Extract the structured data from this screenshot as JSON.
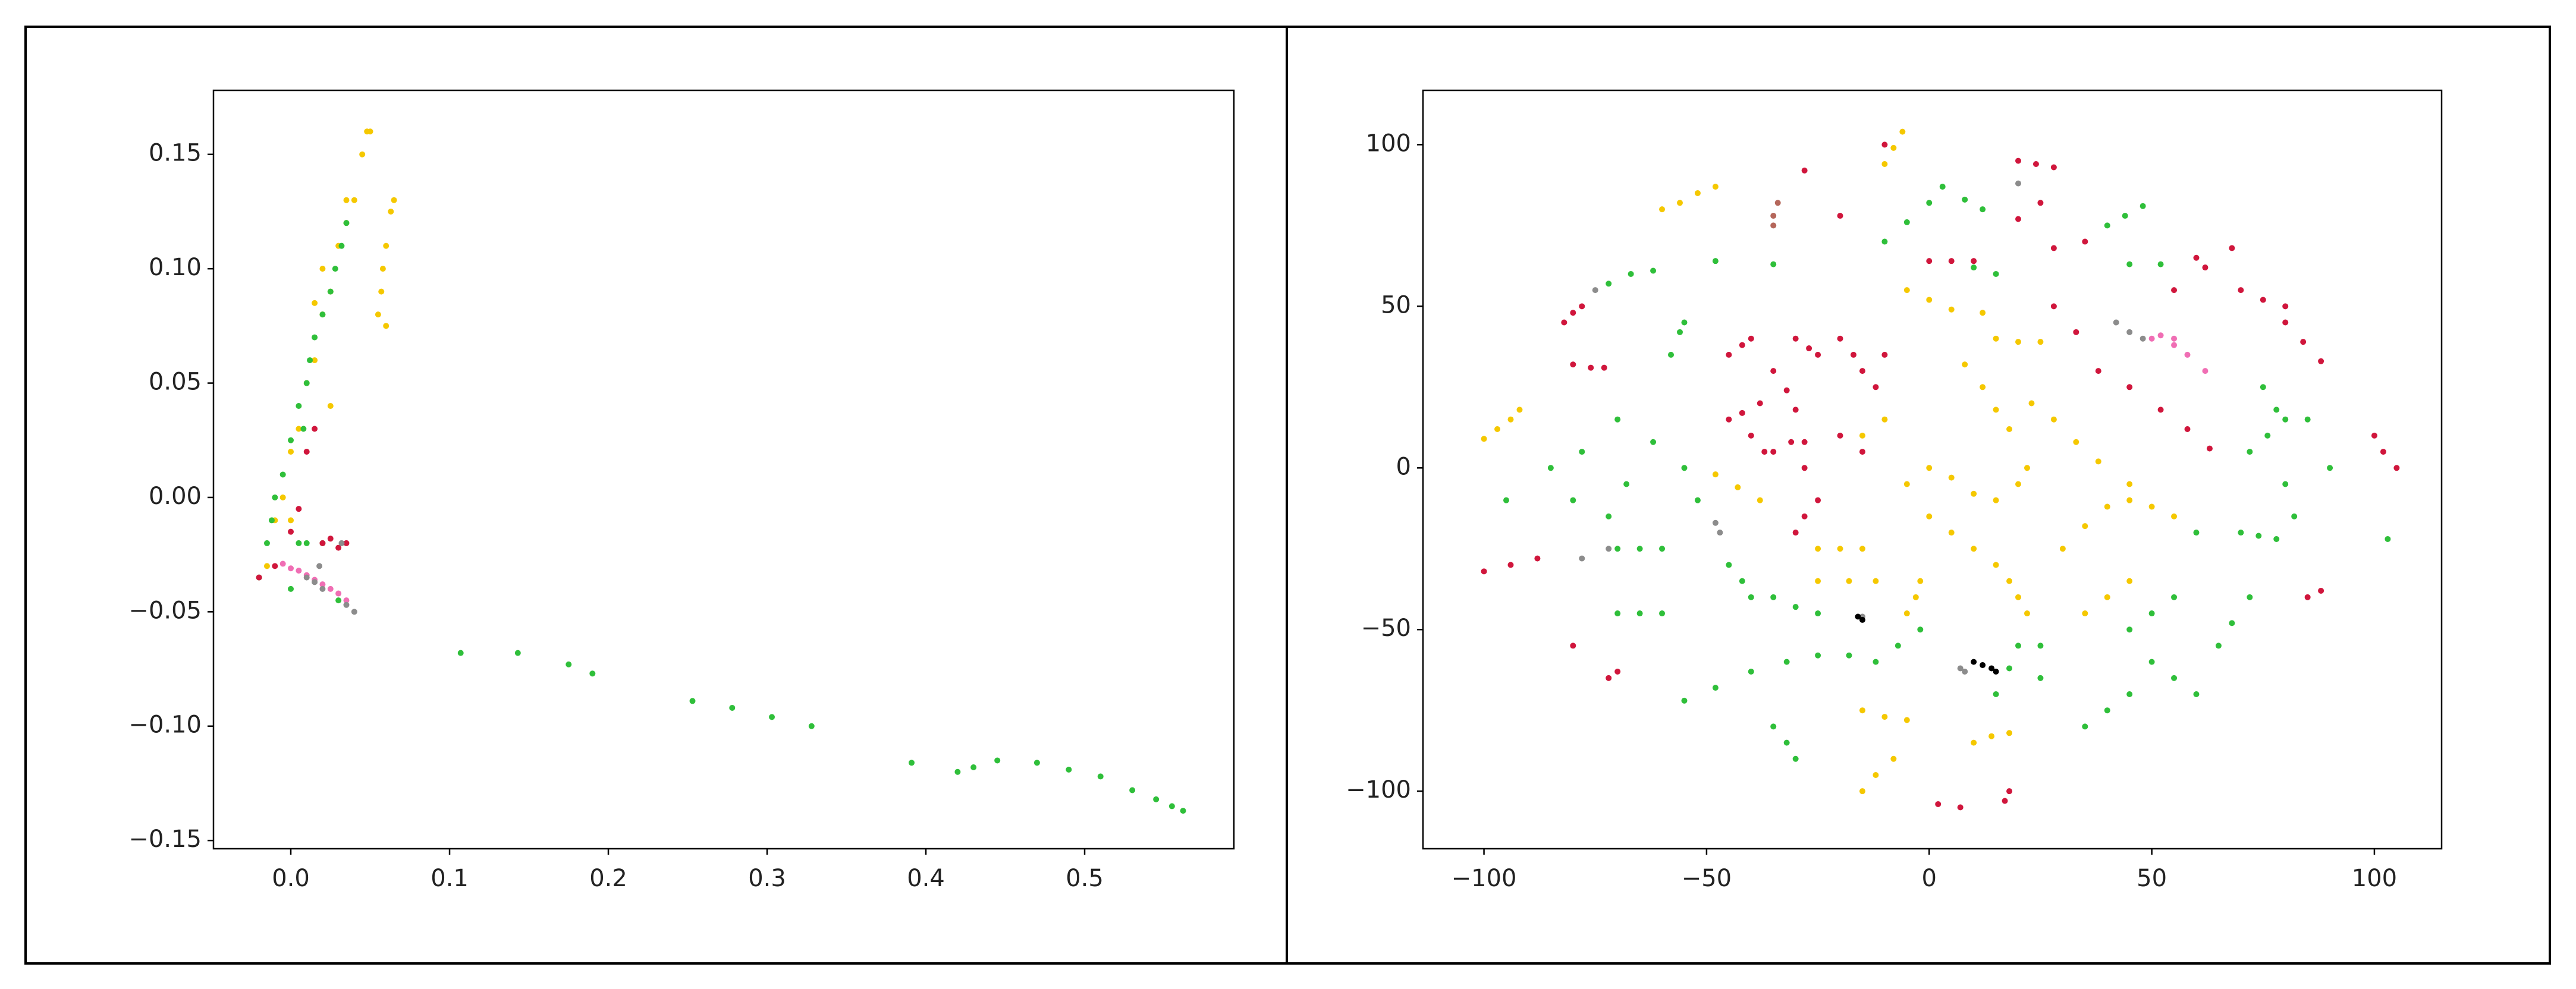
{
  "chart_data": [
    {
      "type": "scatter",
      "xlim": [
        -0.0487,
        0.594
      ],
      "ylim": [
        -0.1536,
        0.178
      ],
      "xticks": [
        {
          "value": 0,
          "label": "0.0"
        },
        0.1,
        0.2,
        0.3,
        0.4,
        0.5
      ],
      "yticks": [
        {
          "value": -0.15,
          "label": "−0.15"
        },
        {
          "value": -0.1,
          "label": "−0.10"
        },
        {
          "value": -0.05,
          "label": "−0.05"
        },
        {
          "value": 0,
          "label": "0.00"
        },
        0.05,
        {
          "value": 0.1,
          "label": "0.10"
        },
        0.15
      ],
      "series": [
        {
          "color": "#f5c800",
          "x": [
            -0.015,
            -0.01,
            -0.005,
            0,
            0.005,
            0.01,
            0.015,
            0.02,
            0.025,
            0.03,
            0.035,
            0.04,
            0.045,
            0.048,
            0.05,
            0.02,
            0.015,
            0.035,
            0.055,
            0.058,
            0.06,
            0.063,
            0.065,
            0.06,
            0.057,
            0.025,
            0
          ],
          "values": [
            -0.03,
            -0.01,
            0,
            0.02,
            0.03,
            0.05,
            0.06,
            0.08,
            0.09,
            0.11,
            0.12,
            0.13,
            0.15,
            0.16,
            0.16,
            0.1,
            0.085,
            0.13,
            0.08,
            0.1,
            0.11,
            0.125,
            0.13,
            0.075,
            0.09,
            0.04,
            -0.01
          ]
        },
        {
          "color": "#2fbf3a",
          "x": [
            -0.02,
            -0.015,
            -0.012,
            -0.01,
            -0.005,
            0,
            0.005,
            0.01,
            0.012,
            0.015,
            0.02,
            0.025,
            0.028,
            0.032,
            0.035,
            0.005,
            0.01,
            0.02,
            0,
            0.008,
            0.03,
            0.107,
            0.143,
            0.175,
            0.19,
            0.253,
            0.278,
            0.303,
            0.328,
            0.391,
            0.42,
            0.43,
            0.445,
            0.47,
            0.49,
            0.51,
            0.53,
            0.545,
            0.555,
            0.562
          ],
          "values": [
            -0.035,
            -0.02,
            -0.01,
            0,
            0.01,
            0.025,
            0.04,
            0.05,
            0.06,
            0.07,
            0.08,
            0.09,
            0.1,
            0.11,
            0.12,
            -0.02,
            -0.02,
            -0.02,
            -0.04,
            0.03,
            -0.045,
            -0.068,
            -0.068,
            -0.073,
            -0.077,
            -0.089,
            -0.092,
            -0.096,
            -0.1,
            -0.116,
            -0.12,
            -0.118,
            -0.115,
            -0.116,
            -0.119,
            -0.122,
            -0.128,
            -0.132,
            -0.135,
            -0.137
          ]
        },
        {
          "color": "#d0163c",
          "x": [
            -0.02,
            -0.01,
            0.02,
            0.025,
            0.03,
            0.035,
            0,
            0.005,
            0.015,
            0.01
          ],
          "values": [
            -0.035,
            -0.03,
            -0.02,
            -0.018,
            -0.022,
            -0.02,
            -0.015,
            -0.005,
            0.03,
            0.02
          ]
        },
        {
          "color": "#f06eb4",
          "x": [
            -0.005,
            0,
            0.005,
            0.01,
            0.015,
            0.02,
            0.025,
            0.03,
            0.035
          ],
          "values": [
            -0.029,
            -0.031,
            -0.032,
            -0.034,
            -0.036,
            -0.038,
            -0.04,
            -0.042,
            -0.045
          ]
        },
        {
          "color": "#8c8c8c",
          "x": [
            0.01,
            0.015,
            0.02,
            0.035,
            0.04,
            0.032,
            0.018
          ],
          "values": [
            -0.035,
            -0.037,
            -0.04,
            -0.047,
            -0.05,
            -0.02,
            -0.03
          ]
        }
      ]
    },
    {
      "type": "scatter",
      "xlim": [
        -113.7,
        115.1
      ],
      "ylim": [
        -117.8,
        116.8
      ],
      "xticks": [
        {
          "value": -100,
          "label": "−100"
        },
        {
          "value": -50,
          "label": "−50"
        },
        0,
        50,
        100
      ],
      "yticks": [
        {
          "value": -100,
          "label": "−100"
        },
        {
          "value": -50,
          "label": "−50"
        },
        0,
        50,
        100
      ],
      "series": [
        {
          "color": "#f5c800",
          "x": [
            -100,
            -97,
            -94,
            -92,
            -60,
            -56,
            -52,
            -48,
            -10,
            -8,
            -6,
            -5,
            0,
            5,
            12,
            8,
            12,
            15,
            18,
            15,
            20,
            25,
            23,
            28,
            33,
            38,
            -48,
            -43,
            -38,
            -25,
            -20,
            -15,
            -25,
            -18,
            -12,
            -5,
            0,
            5,
            10,
            15,
            20,
            22,
            0,
            5,
            10,
            15,
            18,
            20,
            22,
            -15,
            -10,
            30,
            35,
            40,
            45,
            45,
            50,
            55,
            35,
            40,
            45,
            -15,
            -10,
            -5,
            -15,
            -12,
            -8,
            10,
            14,
            18,
            -5,
            -3,
            -2
          ],
          "values": [
            9,
            12,
            15,
            18,
            80,
            82,
            85,
            87,
            94,
            99,
            104,
            55,
            52,
            49,
            48,
            32,
            25,
            18,
            12,
            40,
            39,
            39,
            20,
            15,
            8,
            2,
            -2,
            -6,
            -10,
            -25,
            -25,
            -25,
            -35,
            -35,
            -35,
            -5,
            0,
            -3,
            -8,
            -10,
            -5,
            0,
            -15,
            -20,
            -25,
            -30,
            -35,
            -40,
            -45,
            10,
            15,
            -25,
            -18,
            -12,
            -5,
            -10,
            -12,
            -15,
            -45,
            -40,
            -35,
            -75,
            -77,
            -78,
            -100,
            -95,
            -90,
            -85,
            -83,
            -82,
            -45,
            -40,
            -35
          ]
        },
        {
          "color": "#2fbf3a",
          "x": [
            -58,
            -56,
            -55,
            -72,
            -67,
            -62,
            -48,
            -35,
            -10,
            -5,
            0,
            3,
            8,
            12,
            10,
            15,
            45,
            52,
            40,
            44,
            48,
            -85,
            -78,
            -80,
            -72,
            -68,
            -70,
            -62,
            -55,
            -52,
            -95,
            -70,
            -65,
            -60,
            -70,
            -65,
            -60,
            -45,
            -42,
            -40,
            -35,
            -30,
            -25,
            -55,
            -48,
            -40,
            -32,
            -25,
            -18,
            -12,
            -7,
            -2,
            -35,
            -32,
            -30,
            15,
            18,
            20,
            25,
            25,
            35,
            40,
            45,
            45,
            50,
            55,
            65,
            68,
            72,
            80,
            82,
            70,
            74,
            78,
            60,
            72,
            76,
            80,
            75,
            78,
            85,
            90,
            50,
            55,
            60,
            103
          ],
          "values": [
            35,
            42,
            45,
            57,
            60,
            61,
            64,
            63,
            70,
            76,
            82,
            87,
            83,
            80,
            62,
            60,
            63,
            63,
            75,
            78,
            81,
            0,
            5,
            -10,
            -15,
            -5,
            15,
            8,
            0,
            -10,
            -10,
            -45,
            -45,
            -45,
            -25,
            -25,
            -25,
            -30,
            -35,
            -40,
            -40,
            -43,
            -45,
            -72,
            -68,
            -63,
            -60,
            -58,
            -58,
            -60,
            -55,
            -50,
            -80,
            -85,
            -90,
            -70,
            -62,
            -55,
            -65,
            -55,
            -80,
            -75,
            -70,
            -50,
            -45,
            -40,
            -55,
            -48,
            -40,
            -5,
            -15,
            -20,
            -21,
            -22,
            -20,
            5,
            10,
            15,
            25,
            18,
            15,
            0,
            -60,
            -65,
            -70,
            -22
          ]
        },
        {
          "color": "#d0163c",
          "x": [
            -82,
            -80,
            -78,
            -80,
            -76,
            -73,
            -100,
            -94,
            -88,
            -80,
            -70,
            -72,
            -45,
            -42,
            -38,
            -45,
            -42,
            -40,
            -30,
            -27,
            -25,
            -20,
            -17,
            -15,
            -35,
            -32,
            -30,
            -40,
            -37,
            -35,
            -31,
            -28,
            -28,
            -25,
            -28,
            -30,
            -20,
            -15,
            -10,
            -12,
            -20,
            -10,
            -28,
            20,
            25,
            20,
            24,
            28,
            0,
            5,
            10,
            28,
            33,
            38,
            45,
            52,
            58,
            63,
            28,
            35,
            60,
            68,
            55,
            62,
            70,
            75,
            80,
            80,
            84,
            88,
            100,
            102,
            105,
            85,
            88,
            7,
            2,
            17,
            18
          ],
          "values": [
            45,
            48,
            50,
            32,
            31,
            31,
            -32,
            -30,
            -28,
            -55,
            -63,
            -65,
            15,
            17,
            20,
            35,
            38,
            40,
            40,
            37,
            35,
            40,
            35,
            30,
            30,
            24,
            18,
            10,
            5,
            5,
            8,
            8,
            0,
            -10,
            -15,
            -20,
            10,
            5,
            35,
            25,
            78,
            100,
            92,
            77,
            82,
            95,
            94,
            93,
            64,
            64,
            64,
            50,
            42,
            30,
            25,
            18,
            12,
            6,
            68,
            70,
            65,
            68,
            55,
            62,
            55,
            52,
            50,
            45,
            39,
            33,
            10,
            5,
            0,
            -40,
            -38,
            -105,
            -104,
            -103,
            -100
          ]
        },
        {
          "color": "#f06eb4",
          "x": [
            50,
            52,
            55,
            55,
            58,
            62
          ],
          "values": [
            40,
            41,
            40,
            38,
            35,
            30
          ]
        },
        {
          "color": "#8c8c8c",
          "x": [
            -75,
            -72,
            -78,
            -48,
            -47,
            42,
            45,
            48,
            7,
            8,
            20,
            -15
          ],
          "values": [
            55,
            -25,
            -28,
            -17,
            -20,
            45,
            42,
            40,
            -62,
            -63,
            88,
            -46
          ]
        },
        {
          "color": "#b5675b",
          "x": [
            -35,
            -35,
            -34
          ],
          "values": [
            75,
            78,
            82
          ]
        },
        {
          "color": "#000000",
          "x": [
            -15,
            -16,
            10,
            12,
            14,
            15
          ],
          "values": [
            -47,
            -46,
            -60,
            -61,
            -62,
            -63
          ]
        }
      ]
    }
  ]
}
